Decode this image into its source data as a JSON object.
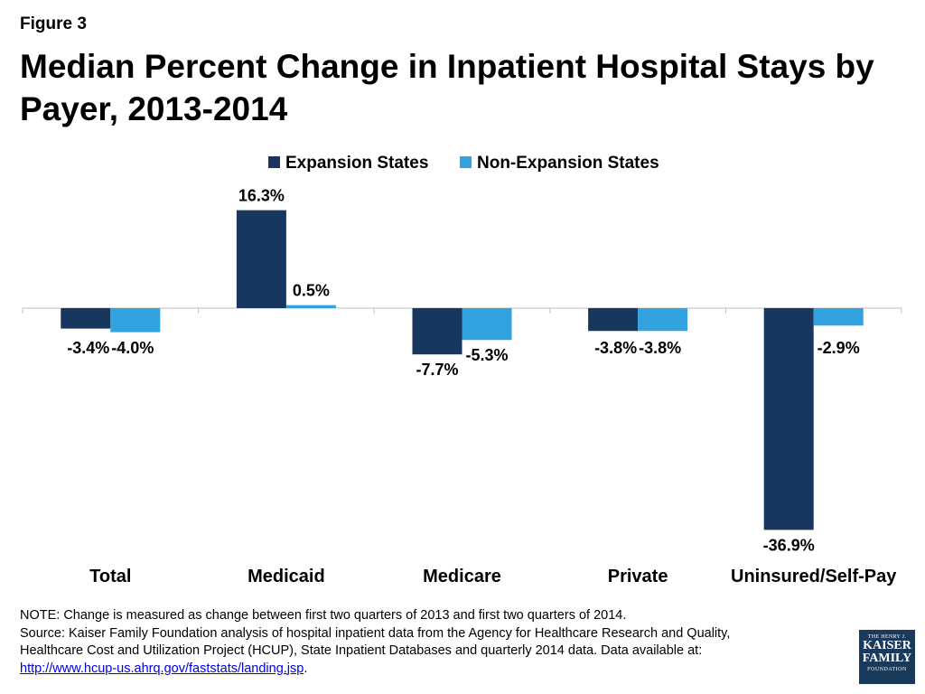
{
  "figure_label": "Figure 3",
  "title": "Median Percent Change in Inpatient Hospital Stays by Payer, 2013-2014",
  "chart_data": {
    "type": "bar",
    "categories": [
      "Total",
      "Medicaid",
      "Medicare",
      "Private",
      "Uninsured/Self-Pay"
    ],
    "series": [
      {
        "name": "Expansion States",
        "values": [
          -3.4,
          16.3,
          -7.7,
          -3.8,
          -36.9
        ],
        "labels": [
          "-3.4%",
          "16.3%",
          "-7.7%",
          "-3.8%",
          "-36.9%"
        ],
        "color": "#17375e"
      },
      {
        "name": "Non-Expansion States",
        "values": [
          -4.0,
          0.5,
          -5.3,
          -3.8,
          -2.9
        ],
        "labels": [
          "-4.0%",
          "0.5%",
          "-5.3%",
          "-3.8%",
          "-2.9%"
        ],
        "color": "#33a3e0"
      }
    ],
    "title": "",
    "xlabel": "",
    "ylabel": "",
    "ylim": [
      -40,
      20
    ],
    "grid": false,
    "legend": "top-center"
  },
  "notes": {
    "line1": "NOTE: Change is measured as change between first two quarters of 2013 and first two quarters of 2014.",
    "line2": "Source:  Kaiser Family Foundation analysis of hospital inpatient data from the Agency for Healthcare Research and Quality,",
    "line3": "Healthcare Cost and Utilization Project (HCUP), State Inpatient Databases and quarterly 2014 data. Data available at:",
    "link": "http://www.hcup-us.ahrq.gov/faststats/landing.jsp",
    "link_suffix": "."
  },
  "logo": {
    "line1": "THE HENRY J.",
    "line2": "KAISER",
    "line3": "FAMILY",
    "line4": "FOUNDATION"
  }
}
